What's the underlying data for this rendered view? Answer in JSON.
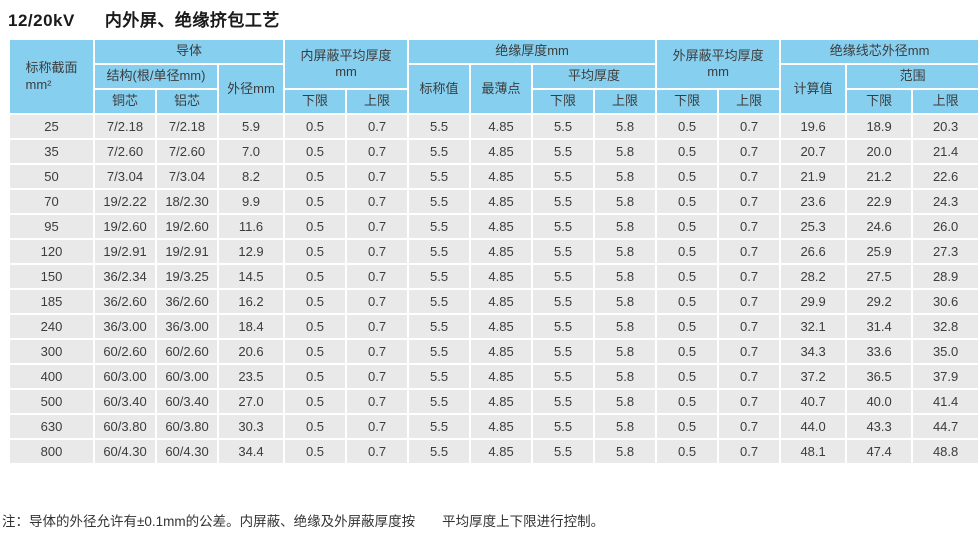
{
  "colors": {
    "header_bg": "#87CFEF",
    "row_bg": "#E9E9E9",
    "grid": "#FFFFFF",
    "text": "#3C3C3C",
    "title_color": "#1A1A1A"
  },
  "title": {
    "voltage": "12/20kV",
    "name": "内外屏、绝缘挤包工艺"
  },
  "table": {
    "headers": {
      "nominal_section": "标称截面\nmm²",
      "conductor": "导体",
      "structure": "结构(根/单径mm)",
      "copper": "铜芯",
      "aluminum": "铝芯",
      "outer_diameter": "外径mm",
      "inner_shield": "内屏蔽平均厚度\nmm",
      "insulation_thickness": "绝缘厚度mm",
      "nominal_value": "标称值",
      "thinnest_point": "最薄点",
      "average_thickness": "平均厚度",
      "outer_shield": "外屏蔽平均厚度\nmm",
      "insulated_core_od": "绝缘线芯外径mm",
      "calculated_value": "计算值",
      "range": "范围",
      "lower": "下限",
      "upper": "上限"
    },
    "rows": [
      [
        "25",
        "7/2.18",
        "7/2.18",
        "5.9",
        "0.5",
        "0.7",
        "5.5",
        "4.85",
        "5.5",
        "5.8",
        "0.5",
        "0.7",
        "19.6",
        "18.9",
        "20.3"
      ],
      [
        "35",
        "7/2.60",
        "7/2.60",
        "7.0",
        "0.5",
        "0.7",
        "5.5",
        "4.85",
        "5.5",
        "5.8",
        "0.5",
        "0.7",
        "20.7",
        "20.0",
        "21.4"
      ],
      [
        "50",
        "7/3.04",
        "7/3.04",
        "8.2",
        "0.5",
        "0.7",
        "5.5",
        "4.85",
        "5.5",
        "5.8",
        "0.5",
        "0.7",
        "21.9",
        "21.2",
        "22.6"
      ],
      [
        "70",
        "19/2.22",
        "18/2.30",
        "9.9",
        "0.5",
        "0.7",
        "5.5",
        "4.85",
        "5.5",
        "5.8",
        "0.5",
        "0.7",
        "23.6",
        "22.9",
        "24.3"
      ],
      [
        "95",
        "19/2.60",
        "19/2.60",
        "11.6",
        "0.5",
        "0.7",
        "5.5",
        "4.85",
        "5.5",
        "5.8",
        "0.5",
        "0.7",
        "25.3",
        "24.6",
        "26.0"
      ],
      [
        "120",
        "19/2.91",
        "19/2.91",
        "12.9",
        "0.5",
        "0.7",
        "5.5",
        "4.85",
        "5.5",
        "5.8",
        "0.5",
        "0.7",
        "26.6",
        "25.9",
        "27.3"
      ],
      [
        "150",
        "36/2.34",
        "19/3.25",
        "14.5",
        "0.5",
        "0.7",
        "5.5",
        "4.85",
        "5.5",
        "5.8",
        "0.5",
        "0.7",
        "28.2",
        "27.5",
        "28.9"
      ],
      [
        "185",
        "36/2.60",
        "36/2.60",
        "16.2",
        "0.5",
        "0.7",
        "5.5",
        "4.85",
        "5.5",
        "5.8",
        "0.5",
        "0.7",
        "29.9",
        "29.2",
        "30.6"
      ],
      [
        "240",
        "36/3.00",
        "36/3.00",
        "18.4",
        "0.5",
        "0.7",
        "5.5",
        "4.85",
        "5.5",
        "5.8",
        "0.5",
        "0.7",
        "32.1",
        "31.4",
        "32.8"
      ],
      [
        "300",
        "60/2.60",
        "60/2.60",
        "20.6",
        "0.5",
        "0.7",
        "5.5",
        "4.85",
        "5.5",
        "5.8",
        "0.5",
        "0.7",
        "34.3",
        "33.6",
        "35.0"
      ],
      [
        "400",
        "60/3.00",
        "60/3.00",
        "23.5",
        "0.5",
        "0.7",
        "5.5",
        "4.85",
        "5.5",
        "5.8",
        "0.5",
        "0.7",
        "37.2",
        "36.5",
        "37.9"
      ],
      [
        "500",
        "60/3.40",
        "60/3.40",
        "27.0",
        "0.5",
        "0.7",
        "5.5",
        "4.85",
        "5.5",
        "5.8",
        "0.5",
        "0.7",
        "40.7",
        "40.0",
        "41.4"
      ],
      [
        "630",
        "60/3.80",
        "60/3.80",
        "30.3",
        "0.5",
        "0.7",
        "5.5",
        "4.85",
        "5.5",
        "5.8",
        "0.5",
        "0.7",
        "44.0",
        "43.3",
        "44.7"
      ],
      [
        "800",
        "60/4.30",
        "60/4.30",
        "34.4",
        "0.5",
        "0.7",
        "5.5",
        "4.85",
        "5.5",
        "5.8",
        "0.5",
        "0.7",
        "48.1",
        "47.4",
        "48.8"
      ]
    ]
  },
  "note": "注：导体的外径允许有±0.1mm的公差。内屏蔽、绝缘及外屏蔽厚度按　　平均厚度上下限进行控制。"
}
